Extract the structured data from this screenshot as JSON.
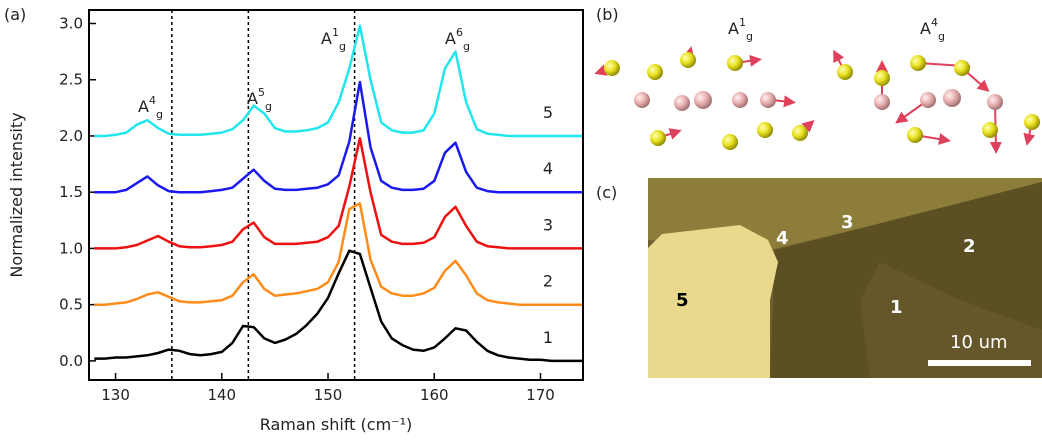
{
  "chart_data": {
    "type": "line",
    "panel_label": "(a)",
    "xlabel": "Raman shift (cm⁻¹)",
    "ylabel": "Normalized intensity",
    "xlim": [
      127.5,
      174
    ],
    "ylim": [
      -0.17,
      3.12
    ],
    "xticks": [
      130,
      140,
      150,
      160,
      170
    ],
    "yticks": [
      {
        "value": 0,
        "label": "0.0"
      },
      0.5,
      {
        "value": 1,
        "label": "1.0"
      },
      1.5,
      {
        "value": 2,
        "label": "2.0"
      },
      2.5,
      {
        "value": 3,
        "label": "3.0"
      }
    ],
    "vlines": [
      135.3,
      142.5,
      152.5
    ],
    "annotations": [
      {
        "base": "A",
        "sup": "4",
        "sub": "g"
      },
      {
        "base": "A",
        "sup": "5",
        "sub": "g"
      },
      {
        "base": "A",
        "sup": "1",
        "sub": "g"
      },
      {
        "base": "A",
        "sup": "6",
        "sub": "g"
      }
    ],
    "x": [
      128,
      129,
      130,
      131,
      132,
      133,
      134,
      135,
      136,
      137,
      138,
      139,
      140,
      141,
      142,
      143,
      144,
      145,
      146,
      147,
      148,
      149,
      150,
      151,
      152,
      153,
      154,
      155,
      156,
      157,
      158,
      159,
      160,
      161,
      162,
      163,
      164,
      165,
      166,
      167,
      168,
      169,
      170,
      171,
      172,
      173,
      174
    ],
    "series": [
      {
        "name": "1",
        "color": "#000000",
        "values": [
          0.02,
          0.02,
          0.03,
          0.03,
          0.04,
          0.05,
          0.07,
          0.1,
          0.09,
          0.06,
          0.05,
          0.06,
          0.08,
          0.16,
          0.31,
          0.3,
          0.2,
          0.16,
          0.19,
          0.24,
          0.32,
          0.42,
          0.56,
          0.78,
          0.98,
          0.95,
          0.65,
          0.35,
          0.2,
          0.14,
          0.1,
          0.09,
          0.12,
          0.2,
          0.29,
          0.27,
          0.17,
          0.09,
          0.05,
          0.03,
          0.02,
          0.01,
          0.01,
          0,
          0,
          0,
          0
        ]
      },
      {
        "name": "2",
        "color": "#ff8c1a",
        "values": [
          0.5,
          0.5,
          0.51,
          0.52,
          0.55,
          0.59,
          0.61,
          0.57,
          0.53,
          0.52,
          0.52,
          0.53,
          0.54,
          0.58,
          0.7,
          0.77,
          0.64,
          0.58,
          0.59,
          0.6,
          0.62,
          0.64,
          0.7,
          0.88,
          1.35,
          1.4,
          0.9,
          0.66,
          0.6,
          0.58,
          0.58,
          0.6,
          0.65,
          0.8,
          0.89,
          0.76,
          0.6,
          0.54,
          0.52,
          0.51,
          0.5,
          0.5,
          0.5,
          0.5,
          0.5,
          0.5,
          0.5
        ]
      },
      {
        "name": "3",
        "color": "#ee1111",
        "values": [
          1,
          1,
          1,
          1.01,
          1.03,
          1.07,
          1.11,
          1.06,
          1.02,
          1.01,
          1.01,
          1.02,
          1.03,
          1.06,
          1.17,
          1.23,
          1.1,
          1.04,
          1.04,
          1.04,
          1.05,
          1.06,
          1.1,
          1.2,
          1.55,
          1.98,
          1.5,
          1.12,
          1.06,
          1.04,
          1.04,
          1.05,
          1.1,
          1.28,
          1.37,
          1.2,
          1.06,
          1.02,
          1.01,
          1,
          1,
          1,
          1,
          1,
          1,
          1,
          1
        ]
      },
      {
        "name": "4",
        "color": "#1a1aee",
        "values": [
          1.5,
          1.5,
          1.5,
          1.52,
          1.58,
          1.64,
          1.56,
          1.51,
          1.5,
          1.5,
          1.5,
          1.51,
          1.52,
          1.54,
          1.62,
          1.7,
          1.6,
          1.53,
          1.52,
          1.52,
          1.53,
          1.54,
          1.57,
          1.65,
          1.95,
          2.48,
          1.9,
          1.6,
          1.54,
          1.52,
          1.52,
          1.53,
          1.6,
          1.85,
          1.94,
          1.68,
          1.54,
          1.51,
          1.5,
          1.5,
          1.5,
          1.5,
          1.5,
          1.5,
          1.5,
          1.5,
          1.5
        ]
      },
      {
        "name": "5",
        "color": "#22e6ee",
        "values": [
          2,
          2,
          2.01,
          2.03,
          2.1,
          2.14,
          2.07,
          2.02,
          2.01,
          2.01,
          2.01,
          2.02,
          2.03,
          2.06,
          2.14,
          2.27,
          2.2,
          2.07,
          2.04,
          2.04,
          2.05,
          2.07,
          2.12,
          2.3,
          2.6,
          2.98,
          2.5,
          2.12,
          2.05,
          2.03,
          2.03,
          2.05,
          2.2,
          2.6,
          2.75,
          2.3,
          2.06,
          2.02,
          2.01,
          2,
          2,
          2,
          2,
          2,
          2,
          2,
          2
        ]
      }
    ]
  },
  "panel_b": {
    "panel_label": "(b)",
    "modes": [
      {
        "base": "A",
        "sup": "1",
        "sub": "g"
      },
      {
        "base": "A",
        "sup": "4",
        "sub": "g"
      }
    ]
  },
  "panel_c": {
    "panel_label": "(c)",
    "regions": [
      "5",
      "4",
      "3",
      "2",
      "1"
    ],
    "scale_bar": "10 um"
  }
}
